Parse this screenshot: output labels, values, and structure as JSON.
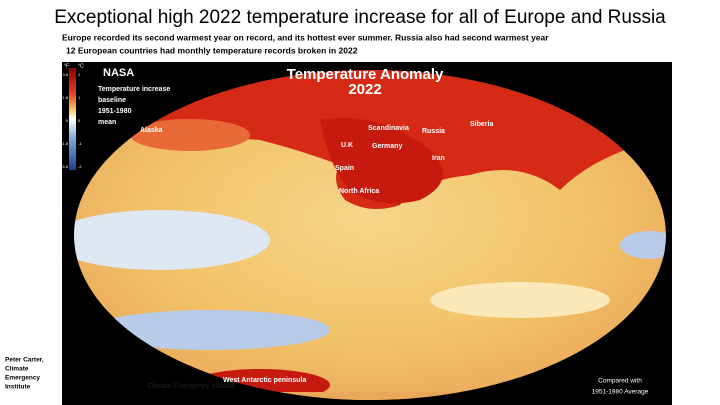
{
  "header": {
    "title": "Exceptional high 2022 temperature increase for all of Europe and Russia",
    "subtitle_lines": [
      "Europe recorded its second warmest year on record, and its hottest ever summer. Russia also had second warmest year",
      "12 European countries had monthly temperature records broken in 2022"
    ]
  },
  "credit": {
    "lines": [
      "Peter Carter,",
      "Climate",
      "Emergency",
      "Institute"
    ]
  },
  "map": {
    "title": "Temperature Anomaly",
    "year": "2022",
    "source": "NASA",
    "legend_note": [
      "Temperature increase",
      "baseline",
      "1951-1980",
      "mean"
    ],
    "legend_units": [
      "°F",
      "°C"
    ],
    "legend_ticks_f": [
      "3.6",
      "1.8",
      "0",
      "-1.8",
      "-3.6"
    ],
    "legend_ticks_c": [
      "2",
      "1",
      "0",
      "-1",
      "-2"
    ],
    "regions": [
      "Alaska",
      "Scandinavia",
      "Russia",
      "Siberia",
      "U.K",
      "Germany",
      "Iran",
      "Spain",
      "North Africa",
      "West Antarctic peninsula"
    ],
    "watermark": "Climate Emergency Institute",
    "comparison": [
      "Compared with",
      "1951-1980 Average"
    ]
  }
}
